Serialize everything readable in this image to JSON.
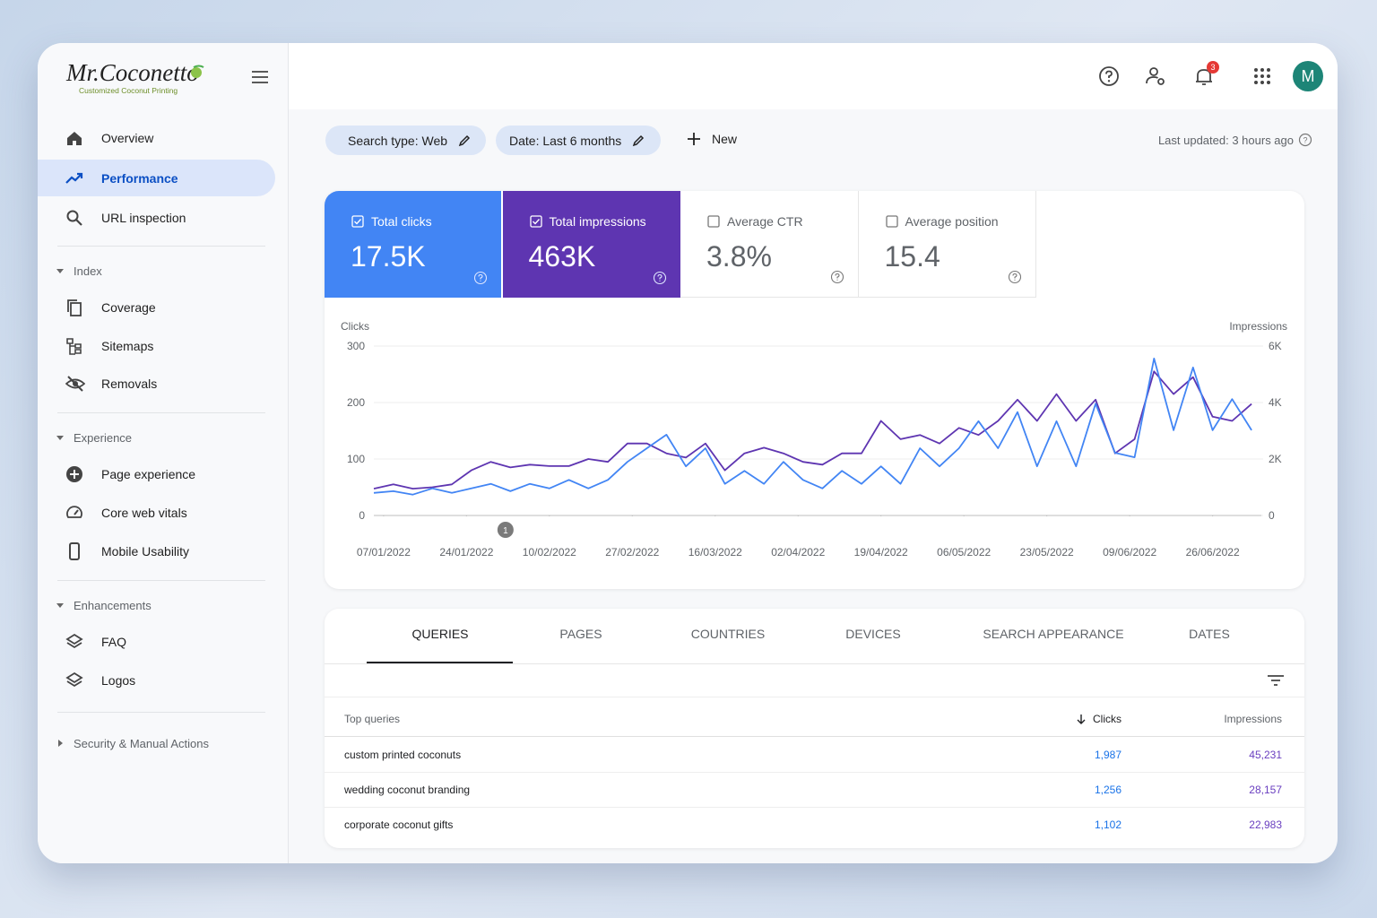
{
  "sidebar": {
    "logo": "Mr.Coconetto",
    "tagline": "Customized Coconut Printing",
    "main": [
      "Overview",
      "Performance",
      "URL inspection"
    ],
    "sections": [
      {
        "title": "Index",
        "items": [
          "Coverage",
          "Sitemaps",
          "Removals"
        ]
      },
      {
        "title": "Experience",
        "items": [
          "Page experience",
          "Core web vitals",
          "Mobile Usability"
        ]
      },
      {
        "title": "Enhancements",
        "items": [
          "FAQ",
          "Logos"
        ]
      }
    ],
    "footer": "Security & Manual Actions"
  },
  "header": {
    "notifications": 3,
    "avatar": "M"
  },
  "filters": {
    "search_type": "Search type: Web",
    "date": "Date: Last 6 months",
    "new": "New",
    "last_updated": "Last updated: 3 hours ago"
  },
  "metrics": [
    {
      "label": "Total clicks",
      "value": "17.5K",
      "selected": true,
      "color": "#4285f4"
    },
    {
      "label": "Total impressions",
      "value": "463K",
      "selected": true,
      "color": "#5e35b1"
    },
    {
      "label": "Average CTR",
      "value": "3.8%",
      "selected": false
    },
    {
      "label": "Average position",
      "value": "15.4",
      "selected": false
    }
  ],
  "chart_data": {
    "type": "line",
    "ylabel": "Clicks",
    "y2label": "Impressions",
    "x": [
      "05/01/2022",
      "09/01/2022",
      "13/01/2022",
      "17/01/2022",
      "21/01/2022",
      "25/01/2022",
      "29/01/2022",
      "02/02/2022",
      "06/02/2022",
      "10/02/2022",
      "14/02/2022",
      "18/02/2022",
      "22/02/2022",
      "26/02/2022",
      "02/03/2022",
      "06/03/2022",
      "10/03/2022",
      "14/03/2022",
      "18/03/2022",
      "22/03/2022",
      "26/03/2022",
      "30/03/2022",
      "03/04/2022",
      "07/04/2022",
      "11/04/2022",
      "15/04/2022",
      "19/04/2022",
      "23/04/2022",
      "27/04/2022",
      "01/05/2022",
      "05/05/2022",
      "09/05/2022",
      "13/05/2022",
      "17/05/2022",
      "21/05/2022",
      "25/05/2022",
      "29/05/2022",
      "02/06/2022",
      "06/06/2022",
      "10/06/2022",
      "14/06/2022",
      "18/06/2022",
      "22/06/2022",
      "26/06/2022",
      "30/06/2022",
      "04/07/2022"
    ],
    "series": [
      {
        "color": "#4285f4",
        "values": [
          40,
          43,
          37,
          48,
          40,
          48,
          56,
          43,
          56,
          48,
          63,
          48,
          63,
          95,
          119,
          143,
          87,
          119,
          56,
          79,
          56,
          95,
          63,
          48,
          79,
          56,
          87,
          56,
          119,
          87,
          119,
          167,
          119,
          183,
          87,
          167,
          87,
          198,
          111,
          103,
          278,
          151,
          262,
          151,
          206,
          151
        ]
      },
      {
        "color": "#5e35b1",
        "axis": "y2",
        "values": [
          950,
          1100,
          950,
          1000,
          1100,
          1600,
          1900,
          1700,
          1800,
          1750,
          1750,
          2000,
          1900,
          2550,
          2550,
          2200,
          2050,
          2550,
          1600,
          2200,
          2400,
          2200,
          1900,
          1800,
          2200,
          2200,
          3350,
          2700,
          2850,
          2550,
          3100,
          2850,
          3350,
          4100,
          3350,
          4300,
          3350,
          4100,
          2200,
          2700,
          5100,
          4300,
          4900,
          3500,
          3350,
          3950
        ]
      }
    ],
    "xlim": [
      "05/01/2022",
      "06/07/2022"
    ],
    "xticks": [
      "07/01/2022",
      "24/01/2022",
      "10/02/2022",
      "27/02/2022",
      "16/03/2022",
      "02/04/2022",
      "19/04/2022",
      "06/05/2022",
      "23/05/2022",
      "09/06/2022",
      "26/06/2022"
    ],
    "ylim": [
      0,
      300
    ],
    "yticks": [
      0,
      100,
      200,
      300
    ],
    "y2lim": [
      0,
      6000
    ],
    "y2ticks": [
      0,
      {
        "value": 2000,
        "label": "2K"
      },
      {
        "value": 4000,
        "label": "4K"
      },
      {
        "value": 6000,
        "label": "6K"
      }
    ],
    "grid": true,
    "annotations": [
      {
        "x": "01/02/2022",
        "label": "1"
      }
    ]
  },
  "tabs": [
    "QUERIES",
    "PAGES",
    "COUNTRIES",
    "DEVICES",
    "SEARCH APPEARANCE",
    "DATES"
  ],
  "table": {
    "header": [
      "Top queries",
      "Clicks",
      "Impressions"
    ],
    "rows": [
      [
        "custom printed coconuts",
        "1,987",
        "45,231"
      ],
      [
        "wedding coconut branding",
        "1,256",
        "28,157"
      ],
      [
        "corporate coconut gifts",
        "1,102",
        "22,983"
      ]
    ]
  }
}
